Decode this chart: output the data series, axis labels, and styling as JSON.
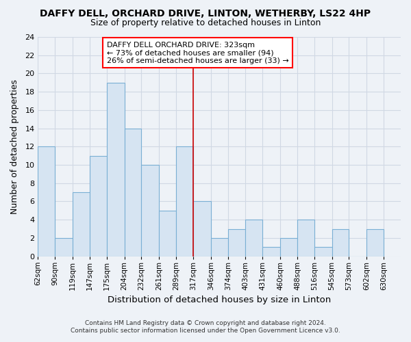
{
  "title": "DAFFY DELL, ORCHARD DRIVE, LINTON, WETHERBY, LS22 4HP",
  "subtitle": "Size of property relative to detached houses in Linton",
  "xlabel": "Distribution of detached houses by size in Linton",
  "ylabel": "Number of detached properties",
  "footer_line1": "Contains HM Land Registry data © Crown copyright and database right 2024.",
  "footer_line2": "Contains public sector information licensed under the Open Government Licence v3.0.",
  "bins": [
    62,
    90,
    119,
    147,
    175,
    204,
    232,
    261,
    289,
    317,
    346,
    374,
    403,
    431,
    460,
    488,
    516,
    545,
    573,
    602,
    630
  ],
  "counts": [
    12,
    2,
    7,
    11,
    19,
    14,
    10,
    5,
    12,
    6,
    2,
    3,
    4,
    1,
    2,
    4,
    1,
    3,
    0,
    3
  ],
  "bar_color": "#d6e4f2",
  "bar_edge_color": "#7aafd4",
  "grid_color": "#d0d8e4",
  "reference_line_x": 317,
  "reference_line_color": "#cc0000",
  "annotation_line1": "DAFFY DELL ORCHARD DRIVE: 323sqm",
  "annotation_line2": "← 73% of detached houses are smaller (94)",
  "annotation_line3": "26% of semi-detached houses are larger (33) →",
  "ylim": [
    0,
    24
  ],
  "yticks": [
    0,
    2,
    4,
    6,
    8,
    10,
    12,
    14,
    16,
    18,
    20,
    22,
    24
  ],
  "tick_labels": [
    "62sqm",
    "90sqm",
    "119sqm",
    "147sqm",
    "175sqm",
    "204sqm",
    "232sqm",
    "261sqm",
    "289sqm",
    "317sqm",
    "346sqm",
    "374sqm",
    "403sqm",
    "431sqm",
    "460sqm",
    "488sqm",
    "516sqm",
    "545sqm",
    "573sqm",
    "602sqm",
    "630sqm"
  ],
  "background_color": "#eef2f7",
  "plot_bg_color": "#eef2f7",
  "title_fontsize": 10,
  "subtitle_fontsize": 9
}
